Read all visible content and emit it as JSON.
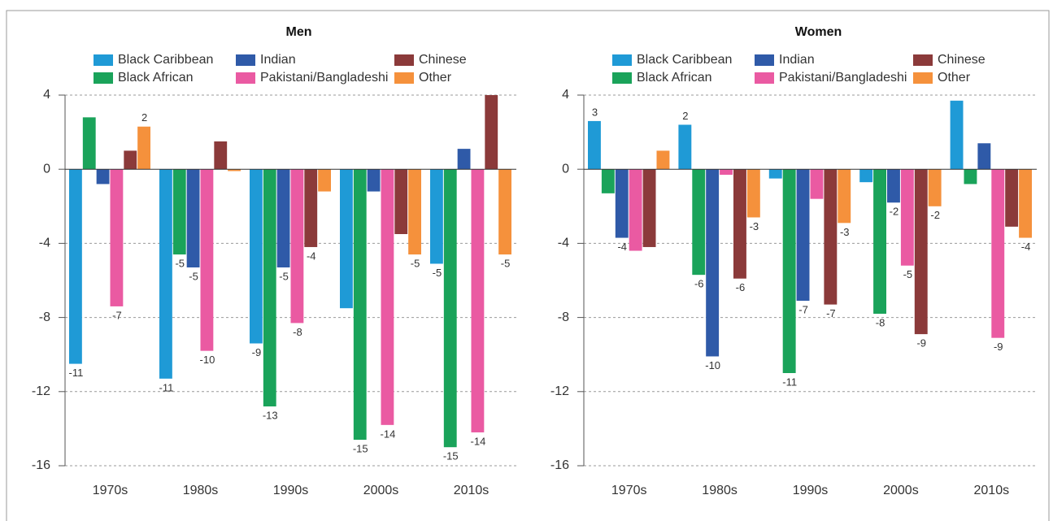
{
  "chart_data": [
    {
      "type": "bar",
      "title": "Men",
      "categories": [
        "1970s",
        "1980s",
        "1990s",
        "2000s",
        "2010s"
      ],
      "ylim": [
        -16,
        4
      ],
      "yticks": [
        -16,
        -12,
        -8,
        -4,
        0,
        4
      ],
      "grid": true,
      "series": [
        {
          "name": "Black Caribbean",
          "color": "#1f9ad6",
          "values": [
            -10.5,
            -11.3,
            -9.4,
            -7.5,
            -5.1
          ],
          "value_labels": [
            "-11",
            "-11",
            "-9",
            null,
            "-5"
          ]
        },
        {
          "name": "Black African",
          "color": "#1aa35a",
          "values": [
            2.8,
            -4.6,
            -12.8,
            -14.6,
            -15.0
          ],
          "value_labels": [
            null,
            "-5",
            "-13",
            "-15",
            "-15"
          ]
        },
        {
          "name": "Indian",
          "color": "#2f5aa8",
          "values": [
            -0.8,
            -5.3,
            -5.3,
            -1.2,
            1.1
          ],
          "value_labels": [
            null,
            "-5",
            "-5",
            null,
            null
          ]
        },
        {
          "name": "Pakistani/Bangladeshi",
          "color": "#ea5aa2",
          "values": [
            -7.4,
            -9.8,
            -8.3,
            -13.8,
            -14.2
          ],
          "value_labels": [
            "-7",
            "-10",
            "-8",
            "-14",
            "-14"
          ]
        },
        {
          "name": "Chinese",
          "color": "#8b3a3a",
          "values": [
            1.0,
            1.5,
            -4.2,
            -3.5,
            4.0
          ],
          "value_labels": [
            null,
            null,
            "-4",
            null,
            null
          ]
        },
        {
          "name": "Other",
          "color": "#f5913c",
          "values": [
            2.3,
            -0.1,
            -1.2,
            -4.6,
            -4.6
          ],
          "value_labels": [
            "2",
            null,
            null,
            "-5",
            "-5"
          ]
        }
      ]
    },
    {
      "type": "bar",
      "title": "Women",
      "categories": [
        "1970s",
        "1980s",
        "1990s",
        "2000s",
        "2010s"
      ],
      "ylim": [
        -16,
        4
      ],
      "yticks": [
        -16,
        -12,
        -8,
        -4,
        0,
        4
      ],
      "grid": true,
      "series": [
        {
          "name": "Black Caribbean",
          "color": "#1f9ad6",
          "values": [
            2.6,
            2.4,
            -0.5,
            -0.7,
            3.7
          ],
          "value_labels": [
            "3",
            "2",
            null,
            null,
            null
          ]
        },
        {
          "name": "Black African",
          "color": "#1aa35a",
          "values": [
            -1.3,
            -5.7,
            -11.0,
            -7.8,
            -0.8
          ],
          "value_labels": [
            null,
            "-6",
            "-11",
            "-8",
            null
          ]
        },
        {
          "name": "Indian",
          "color": "#2f5aa8",
          "values": [
            -3.7,
            -10.1,
            -7.1,
            -1.8,
            1.4
          ],
          "value_labels": [
            "-4",
            "-10",
            "-7",
            "-2",
            null
          ]
        },
        {
          "name": "Pakistani/Bangladeshi",
          "color": "#ea5aa2",
          "values": [
            -4.4,
            -0.3,
            -1.6,
            -5.2,
            -9.1
          ],
          "value_labels": [
            null,
            null,
            null,
            "-5",
            "-9"
          ]
        },
        {
          "name": "Chinese",
          "color": "#8b3a3a",
          "values": [
            -4.2,
            -5.9,
            -7.3,
            -8.9,
            -3.1
          ],
          "value_labels": [
            null,
            "-6",
            "-7",
            "-9",
            null
          ]
        },
        {
          "name": "Other",
          "color": "#f5913c",
          "values": [
            1.0,
            -2.6,
            -2.9,
            -2.0,
            -3.7
          ],
          "value_labels": [
            null,
            "-3",
            "-3",
            "-2",
            "-4"
          ]
        }
      ]
    }
  ]
}
